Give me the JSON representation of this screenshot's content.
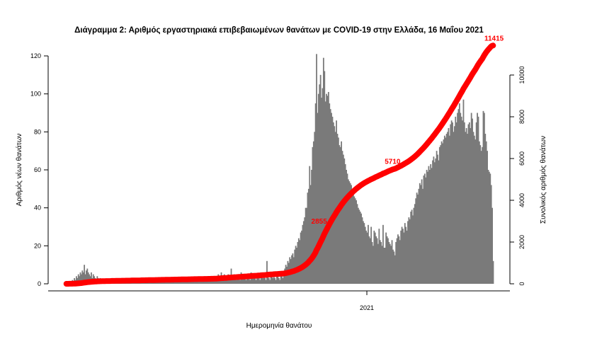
{
  "chart_data": {
    "type": "bar",
    "title": "Διάγραμμα 2: Αριθμός εργαστηριακά επιβεβαιωμένων θανάτων με COVID-19 στην Ελλάδα, 16 Μαΐου 2021",
    "xlabel": "Ημερομηνία θανάτου",
    "ylabel": "Αριθμός νέων θανάτων",
    "y2label": "Συνολικός αριθμός θανάτων",
    "ylim": [
      0,
      120
    ],
    "y2lim": [
      0,
      10000
    ],
    "yticks": [
      0,
      20,
      40,
      60,
      80,
      100,
      120
    ],
    "y2ticks": [
      0,
      2000,
      4000,
      6000,
      8000,
      10000
    ],
    "xticks": [
      {
        "label": "2021",
        "day_index": 299
      }
    ],
    "bar_color": "#7a7a7a",
    "line_color": "#ff0000",
    "cumulative_annotations": [
      {
        "label": "2855",
        "value": 2855
      },
      {
        "label": "5710",
        "value": 5710
      },
      {
        "label": "11415",
        "value": 11415
      }
    ],
    "cumulative_total": 11415,
    "daily_deaths": [
      0,
      0,
      1,
      1,
      0,
      1,
      2,
      1,
      3,
      2,
      4,
      3,
      5,
      4,
      6,
      5,
      7,
      6,
      10,
      5,
      7,
      8,
      6,
      5,
      4,
      6,
      3,
      5,
      4,
      3,
      2,
      4,
      3,
      2,
      3,
      1,
      2,
      2,
      1,
      2,
      1,
      0,
      2,
      1,
      0,
      1,
      3,
      1,
      0,
      2,
      1,
      0,
      2,
      1,
      0,
      1,
      3,
      1,
      0,
      2,
      1,
      0,
      2,
      1,
      0,
      1,
      3,
      1,
      0,
      2,
      1,
      0,
      2,
      1,
      0,
      1,
      3,
      1,
      0,
      2,
      1,
      0,
      2,
      1,
      0,
      1,
      3,
      1,
      0,
      2,
      1,
      0,
      2,
      1,
      0,
      1,
      3,
      1,
      0,
      2,
      1,
      0,
      2,
      1,
      0,
      1,
      3,
      1,
      0,
      2,
      1,
      0,
      2,
      1,
      0,
      1,
      3,
      1,
      0,
      2,
      1,
      0,
      2,
      1,
      0,
      1,
      3,
      1,
      0,
      2,
      1,
      0,
      2,
      1,
      0,
      1,
      3,
      1,
      0,
      2,
      1,
      0,
      2,
      1,
      0,
      1,
      3,
      1,
      0,
      2,
      3,
      2,
      4,
      5,
      3,
      2,
      6,
      4,
      3,
      5,
      3,
      2,
      4,
      5,
      3,
      2,
      8,
      4,
      3,
      5,
      3,
      2,
      4,
      5,
      3,
      2,
      6,
      4,
      3,
      5,
      3,
      2,
      4,
      5,
      3,
      2,
      6,
      4,
      3,
      5,
      3,
      2,
      4,
      5,
      3,
      2,
      6,
      4,
      3,
      5,
      3,
      2,
      12,
      5,
      3,
      2,
      6,
      4,
      3,
      5,
      3,
      2,
      4,
      5,
      3,
      2,
      6,
      4,
      3,
      5,
      8,
      10,
      9,
      12,
      11,
      14,
      13,
      15,
      16,
      14,
      18,
      20,
      19,
      22,
      24,
      23,
      27,
      28,
      31,
      33,
      35,
      40,
      40,
      48,
      50,
      62,
      52,
      60,
      72,
      75,
      80,
      95,
      121,
      90,
      100,
      105,
      110,
      98,
      103,
      119,
      112,
      96,
      100,
      99,
      101,
      95,
      92,
      90,
      88,
      85,
      83,
      80,
      86,
      79,
      77,
      73,
      72,
      75,
      70,
      68,
      66,
      63,
      60,
      58,
      55,
      54,
      53,
      52,
      50,
      48,
      46,
      45,
      44,
      42,
      40,
      39,
      38,
      37,
      35,
      33,
      32,
      30,
      28,
      27,
      31,
      25,
      24,
      30,
      22,
      20,
      28,
      27,
      25,
      24,
      21,
      29,
      23,
      22,
      20,
      31,
      19,
      19,
      27,
      25,
      24,
      22,
      21,
      20,
      23,
      18,
      17,
      15,
      22,
      24,
      26,
      25,
      23,
      28,
      30,
      29,
      27,
      32,
      30,
      28,
      33,
      35,
      34,
      38,
      39,
      36,
      40,
      42,
      45,
      48,
      47,
      50,
      53,
      52,
      55,
      50,
      57,
      58,
      56,
      60,
      59,
      62,
      60,
      63,
      61,
      65,
      67,
      64,
      66,
      70,
      68,
      65,
      72,
      73,
      75,
      74,
      76,
      78,
      77,
      79,
      80,
      82,
      78,
      84,
      86,
      85,
      80,
      83,
      88,
      85,
      90,
      92,
      95,
      90,
      88,
      86,
      97,
      85,
      80,
      82,
      79,
      84,
      85,
      82,
      90,
      87,
      80,
      78,
      76,
      85,
      90,
      88,
      75,
      73,
      70,
      72,
      91,
      90,
      79,
      75,
      70,
      60,
      59,
      58,
      52,
      40,
      12
    ]
  }
}
